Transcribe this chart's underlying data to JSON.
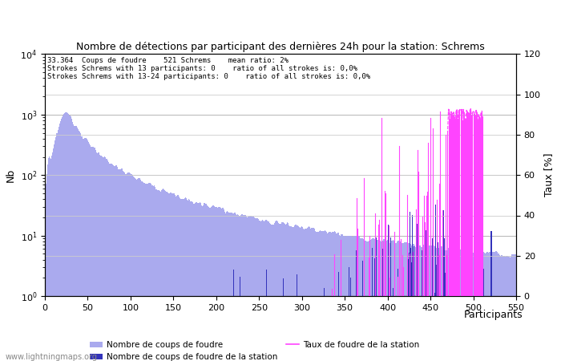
{
  "title": "Nombre de détections par participant des dernières 24h pour la station: Schrems",
  "info_lines": [
    "33.364  Coups de foudre    521 Schrems    mean ratio: 2%",
    "Strokes Schrems with 13 participants: 0    ratio of all strokes is: 0,0%",
    "Strokes Schrems with 13-24 participants: 0    ratio of all strokes is: 0,0%"
  ],
  "xlabel": "Participants",
  "ylabel_left": "Nb",
  "ylabel_right": "Taux [%]",
  "xlim": [
    0,
    550
  ],
  "ylim_left": [
    1,
    10000
  ],
  "ylim_right": [
    0,
    120
  ],
  "yticks_right": [
    0,
    20,
    40,
    60,
    80,
    100,
    120
  ],
  "xticks": [
    0,
    50,
    100,
    150,
    200,
    250,
    300,
    350,
    400,
    450,
    500,
    550
  ],
  "color_global": "#aaaaee",
  "color_station": "#3333bb",
  "color_taux": "#ff44ff",
  "legend_labels": [
    "Nombre de coups de foudre",
    "Nombre de coups de foudre de la station",
    "Taux de foudre de la station"
  ],
  "watermark": "www.lightningmaps.org",
  "n_participants": 550
}
